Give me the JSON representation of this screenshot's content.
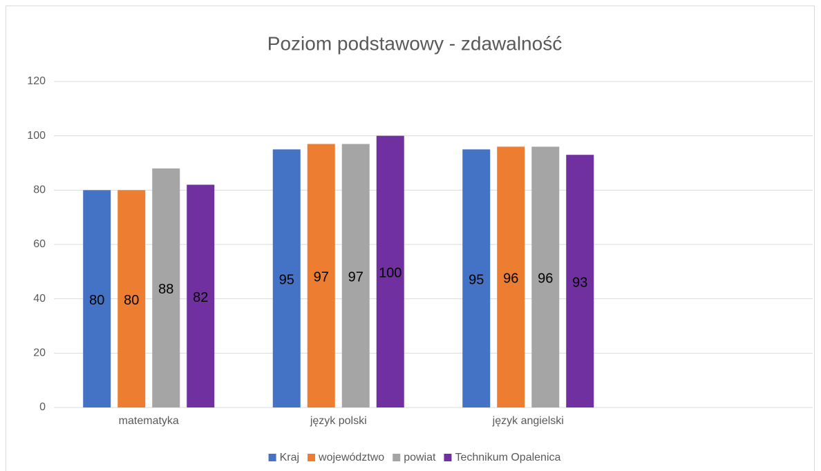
{
  "chart_data": {
    "type": "bar",
    "title": "Poziom podstawowy - zdawalność",
    "categories": [
      "matematyka",
      "język polski",
      "język angielski",
      null
    ],
    "series": [
      {
        "name": "Kraj",
        "color": "#4472c4",
        "values": [
          80,
          95,
          95,
          null
        ]
      },
      {
        "name": "województwo",
        "color": "#ed7d31",
        "values": [
          80,
          97,
          96,
          null
        ]
      },
      {
        "name": "powiat",
        "color": "#a5a5a5",
        "values": [
          88,
          97,
          96,
          null
        ]
      },
      {
        "name": "Technikum Opalenica",
        "color": "#7030a0",
        "values": [
          82,
          100,
          93,
          null
        ]
      }
    ],
    "ylim": [
      0,
      120
    ],
    "yticks": [
      0,
      20,
      40,
      60,
      80,
      100,
      120
    ],
    "grid": true,
    "legend": "bottom"
  }
}
